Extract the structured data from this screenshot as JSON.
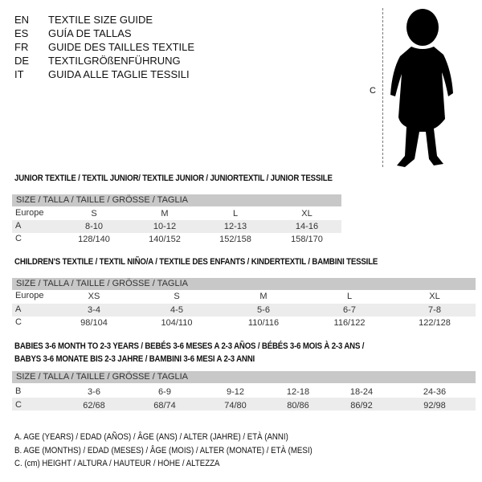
{
  "header": {
    "lines": [
      {
        "code": "EN",
        "text": "TEXTILE SIZE GUIDE"
      },
      {
        "code": "ES",
        "text": "GUÍA DE TALLAS"
      },
      {
        "code": "FR",
        "text": "GUIDE DES TAILLES TEXTILE"
      },
      {
        "code": "DE",
        "text": "TEXTILGRÖßENFÜHRUNG"
      },
      {
        "code": "IT",
        "text": "GUIDA ALLE TAGLIE TESSILI"
      }
    ]
  },
  "figure": {
    "label": "C",
    "icon": "child-silhouette"
  },
  "junior": {
    "title": "JUNIOR TEXTILE / TEXTIL JUNIOR/ TEXTILE JUNIOR / JUNIORTEXTIL / JUNIOR TESSILE",
    "header": "SIZE / TALLA / TAILLE / GRÖSSE / TAGLIA",
    "rows": [
      {
        "label": "Europe",
        "values": [
          "S",
          "M",
          "L",
          "XL"
        ]
      },
      {
        "label": "A",
        "values": [
          "8-10",
          "10-12",
          "12-13",
          "14-16"
        ]
      },
      {
        "label": "C",
        "values": [
          "128/140",
          "140/152",
          "152/158",
          "158/170"
        ]
      }
    ]
  },
  "children": {
    "title": "CHILDREN'S TEXTILE / TEXTIL NIÑO/A / TEXTILE DES ENFANTS / KINDERTEXTIL / BAMBINI TESSILE",
    "header": "SIZE / TALLA / TAILLE / GRÖSSE / TAGLIA",
    "rows": [
      {
        "label": "Europe",
        "values": [
          "XS",
          "S",
          "M",
          "L",
          "XL"
        ]
      },
      {
        "label": "A",
        "values": [
          "3-4",
          "4-5",
          "5-6",
          "6-7",
          "7-8"
        ]
      },
      {
        "label": "C",
        "values": [
          "98/104",
          "104/110",
          "110/116",
          "116/122",
          "122/128"
        ]
      }
    ]
  },
  "babies": {
    "title1": "BABIES 3-6 MONTH TO 2-3 YEARS / BEBÉS 3-6 MESES A 2-3 AÑOS / BÉBÉS 3-6 MOIS À 2-3 ANS /",
    "title2": "BABYS 3-6 MONATE BIS 2-3 JAHRE / BAMBINI 3-6 MESI A 2-3 ANNI",
    "header": "SIZE / TALLA / TAILLE / GRÖSSE / TAGLIA",
    "rows": [
      {
        "label": "B",
        "values": [
          "3-6",
          "6-9",
          "9-12",
          "12-18",
          "18-24",
          "24-36"
        ]
      },
      {
        "label": "C",
        "values": [
          "62/68",
          "68/74",
          "74/80",
          "80/86",
          "86/92",
          "92/98"
        ]
      }
    ]
  },
  "legend": [
    "A. AGE (YEARS) / EDAD (AÑOS) / ÂGE (ANS) / ALTER (JAHRE) / ETÀ (ANNI)",
    "B. AGE (MONTHS) / EDAD (MESES) / ÂGE (MOIS) / ALTER (MONATE) / ETÀ (MESI)",
    "C. (cm) HEIGHT / ALTURA / HAUTEUR / HÖHE / ALTEZZA"
  ]
}
